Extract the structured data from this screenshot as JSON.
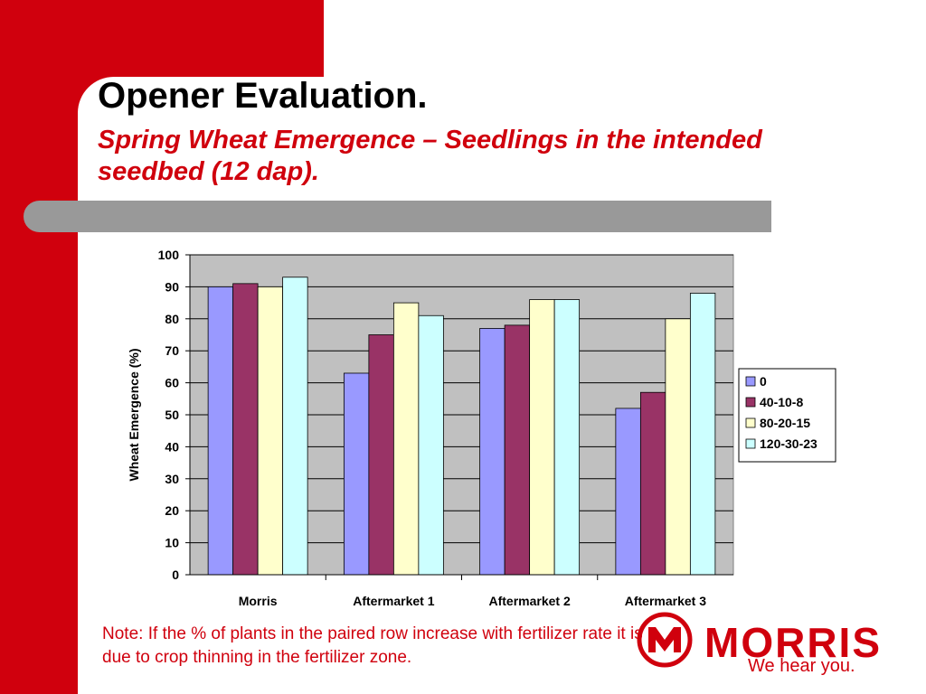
{
  "slide": {
    "title": "Opener Evaluation.",
    "subtitle": "Spring Wheat Emergence – Seedlings in the intended seedbed  (12 dap).",
    "note": "Note: If the % of plants in the paired row increase with fertilizer rate it is due to crop thinning in the fertilizer zone.",
    "accent_color": "#d0000d",
    "logo": {
      "name": "MORRIS",
      "tagline": "We hear you."
    }
  },
  "chart_data": {
    "type": "bar",
    "title": "",
    "xlabel": "",
    "ylabel": "Wheat Emergence (%)",
    "ylim": [
      0,
      100
    ],
    "yticks": [
      0,
      10,
      20,
      30,
      40,
      50,
      60,
      70,
      80,
      90,
      100
    ],
    "grid": true,
    "legend_position": "right",
    "categories": [
      "Morris",
      "Aftermarket 1",
      "Aftermarket 2",
      "Aftermarket 3"
    ],
    "series": [
      {
        "name": "0",
        "color": "#9999ff",
        "values": [
          90,
          63,
          77,
          52
        ]
      },
      {
        "name": "40-10-8",
        "color": "#993366",
        "values": [
          91,
          75,
          78,
          57
        ]
      },
      {
        "name": "80-20-15",
        "color": "#ffffcc",
        "values": [
          90,
          85,
          86,
          80
        ]
      },
      {
        "name": "120-30-23",
        "color": "#ccffff",
        "values": [
          93,
          81,
          86,
          88
        ]
      }
    ],
    "plot_background": "#c0c0c0"
  }
}
